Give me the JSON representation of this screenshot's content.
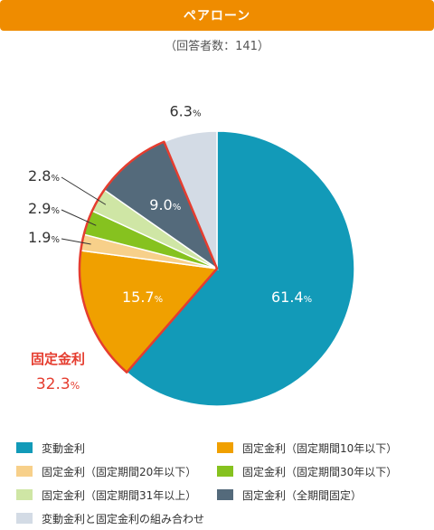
{
  "header": {
    "title": "ペアローン"
  },
  "subtitle": "（回答者数：141）",
  "chart_data": {
    "type": "pie",
    "series": [
      {
        "name": "変動金利",
        "value": 61.4,
        "color": "#129ab8",
        "label": "61.4",
        "label_color": "#ffffff"
      },
      {
        "name": "固定金利（固定期間10年以下）",
        "value": 15.7,
        "color": "#f0a000",
        "label": "15.7",
        "label_color": "#ffffff"
      },
      {
        "name": "固定金利（固定期間20年以下）",
        "value": 1.9,
        "color": "#f7d08a",
        "label": "1.9",
        "label_color": "#333333"
      },
      {
        "name": "固定金利（固定期間30年以下）",
        "value": 2.9,
        "color": "#86c21f",
        "label": "2.9",
        "label_color": "#333333"
      },
      {
        "name": "固定金利（固定期間31年以上）",
        "value": 2.8,
        "color": "#cfe6a5",
        "label": "2.8",
        "label_color": "#333333"
      },
      {
        "name": "固定金利（全期間固定）",
        "value": 9.0,
        "color": "#546a7b",
        "label": "9.0",
        "label_color": "#ffffff"
      },
      {
        "name": "変動金利と固定金利の組み合わせ",
        "value": 6.3,
        "color": "#d3dbe5",
        "label": "6.3",
        "label_color": "#333333"
      }
    ],
    "unit": "%",
    "group_annotation": {
      "label": "固定金利",
      "value": "32.3",
      "unit": "%",
      "color": "#e53d2f"
    }
  }
}
